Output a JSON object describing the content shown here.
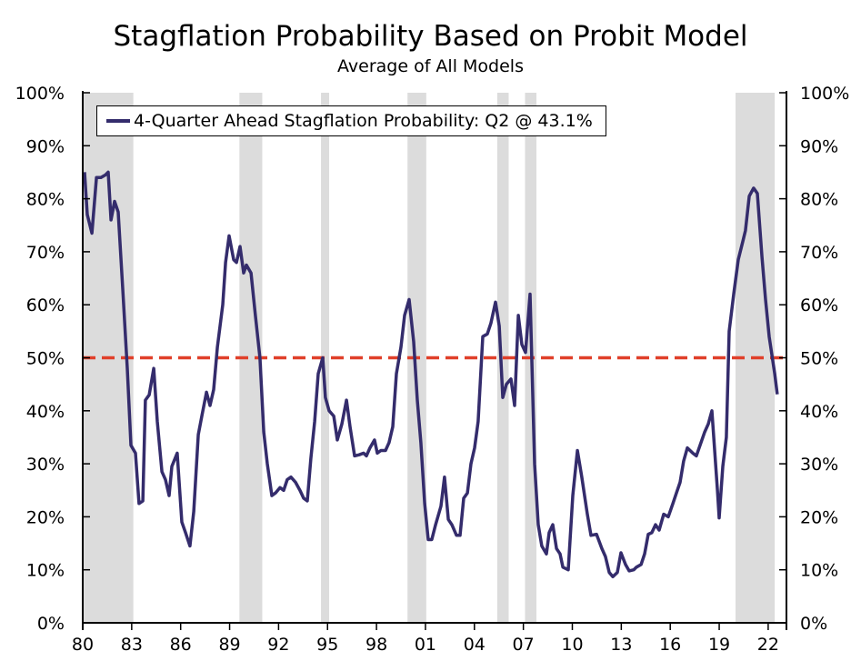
{
  "chart_data": {
    "type": "line",
    "title": "Stagflation Probability Based on Probit Model",
    "subtitle": "Average of All Models",
    "xlim": [
      1980,
      2023.12
    ],
    "ylim": [
      0,
      100
    ],
    "x_tick_values": [
      1980,
      1983,
      1986,
      1989,
      1992,
      1995,
      1998,
      2001,
      2004,
      2007,
      2010,
      2013,
      2016,
      2019,
      2022
    ],
    "x_tick_labels": [
      "80",
      "83",
      "86",
      "89",
      "92",
      "95",
      "98",
      "01",
      "04",
      "07",
      "10",
      "13",
      "16",
      "19",
      "22"
    ],
    "y_tick_values": [
      0,
      10,
      20,
      30,
      40,
      50,
      60,
      70,
      80,
      90,
      100
    ],
    "y_tick_labels": [
      "0%",
      "10%",
      "20%",
      "30%",
      "40%",
      "50%",
      "60%",
      "70%",
      "80%",
      "90%",
      "100%"
    ],
    "grid": false,
    "legend_position": "top-left",
    "threshold": {
      "value": 50,
      "color": "#e0402a",
      "style": "dashed"
    },
    "shaded_periods": [
      [
        1980.0,
        1983.1
      ],
      [
        1989.6,
        1991.0
      ],
      [
        1994.6,
        1995.1
      ],
      [
        1999.9,
        2001.05
      ],
      [
        2005.4,
        2006.1
      ],
      [
        2007.1,
        2007.8
      ],
      [
        2020.0,
        2022.4
      ]
    ],
    "shade_color": "#dcdcdc",
    "series": [
      {
        "name": "4-Quarter Ahead Stagflation Probability: Q2 @ 43.1%",
        "color": "#342c6c",
        "x": [
          1980.11,
          1980.28,
          1980.56,
          1980.84,
          1981.11,
          1981.39,
          1981.56,
          1981.73,
          1981.95,
          1982.17,
          1982.45,
          1982.73,
          1982.95,
          1983.23,
          1983.45,
          1983.68,
          1983.84,
          1984.07,
          1984.35,
          1984.57,
          1984.85,
          1985.07,
          1985.29,
          1985.46,
          1985.79,
          1986.07,
          1986.3,
          1986.57,
          1986.8,
          1987.08,
          1987.3,
          1987.58,
          1987.8,
          1988.02,
          1988.25,
          1988.58,
          1988.75,
          1988.97,
          1989.25,
          1989.42,
          1989.64,
          1989.86,
          1990.03,
          1990.31,
          1990.58,
          1990.86,
          1991.09,
          1991.31,
          1991.59,
          1991.81,
          1992.09,
          1992.31,
          1992.53,
          1992.76,
          1993.04,
          1993.31,
          1993.54,
          1993.76,
          1993.98,
          1994.21,
          1994.43,
          1994.71,
          1994.87,
          1995.1,
          1995.38,
          1995.6,
          1995.88,
          1996.16,
          1996.38,
          1996.66,
          1996.94,
          1997.21,
          1997.38,
          1997.6,
          1997.88,
          1998.05,
          1998.27,
          1998.55,
          1998.77,
          1999.0,
          1999.22,
          1999.5,
          1999.72,
          2000.0,
          2000.28,
          2000.5,
          2000.72,
          2000.95,
          2001.17,
          2001.39,
          2001.62,
          2001.95,
          2002.17,
          2002.4,
          2002.62,
          2002.9,
          2003.12,
          2003.34,
          2003.57,
          2003.79,
          2004.01,
          2004.23,
          2004.51,
          2004.79,
          2005.01,
          2005.29,
          2005.52,
          2005.74,
          2005.96,
          2006.24,
          2006.46,
          2006.69,
          2006.91,
          2007.13,
          2007.41,
          2007.69,
          2007.91,
          2008.13,
          2008.41,
          2008.58,
          2008.8,
          2009.03,
          2009.25,
          2009.42,
          2009.75,
          2010.03,
          2010.31,
          2010.58,
          2010.92,
          2011.14,
          2011.48,
          2011.81,
          2012.03,
          2012.26,
          2012.48,
          2012.76,
          2012.98,
          2013.26,
          2013.48,
          2013.76,
          2013.93,
          2014.21,
          2014.43,
          2014.65,
          2014.87,
          2015.1,
          2015.32,
          2015.6,
          2015.88,
          2016.16,
          2016.38,
          2016.6,
          2016.82,
          2017.05,
          2017.38,
          2017.6,
          2017.83,
          2018.11,
          2018.33,
          2018.55,
          2018.89,
          2019.0,
          2019.22,
          2019.44,
          2019.61,
          2019.89,
          2020.17,
          2020.45,
          2020.61,
          2020.84,
          2021.11,
          2021.34,
          2021.62,
          2021.84,
          2022.06,
          2022.4,
          2022.56
        ],
        "y": [
          85,
          77,
          73.5,
          84,
          84,
          84.5,
          85,
          76,
          79.5,
          77.5,
          63,
          48,
          33.5,
          32,
          22.5,
          23,
          42,
          43,
          48,
          38,
          28.5,
          27,
          24,
          29.5,
          32,
          19,
          17,
          14.5,
          21,
          35.5,
          39,
          43.5,
          41,
          44,
          52,
          60,
          68,
          73,
          68.5,
          68,
          71,
          66,
          67.5,
          66,
          58,
          50,
          36,
          30,
          24,
          24.5,
          25.5,
          25,
          27,
          27.5,
          26.5,
          25,
          23.5,
          23,
          31,
          38,
          47,
          50,
          42.5,
          40,
          39,
          34.5,
          37.5,
          42,
          37,
          31.5,
          31.7,
          32,
          31.5,
          33,
          34.5,
          32,
          32.5,
          32.5,
          34,
          37,
          47,
          52,
          58,
          61,
          53,
          42,
          34,
          22.5,
          15.7,
          15.7,
          18.5,
          22,
          27.5,
          19.5,
          18.5,
          16.5,
          16.5,
          23.5,
          24.5,
          30,
          33,
          38,
          54,
          54.5,
          56.5,
          60.5,
          56,
          42.5,
          45,
          46,
          41,
          58,
          52.5,
          51,
          62,
          30,
          18.5,
          14.5,
          13,
          17,
          18.5,
          14,
          13,
          10.5,
          10,
          24,
          32.5,
          27.5,
          20.5,
          16.5,
          16.7,
          14,
          12.5,
          9.5,
          8.7,
          9.5,
          13.2,
          11,
          9.8,
          10,
          10.5,
          11,
          13,
          16.7,
          17,
          18.5,
          17.5,
          20.5,
          20,
          22.5,
          24.5,
          26.5,
          30.5,
          33,
          32,
          31.5,
          33.5,
          36,
          37.5,
          40,
          25,
          19.8,
          29.5,
          35,
          55,
          62,
          68.5,
          72,
          74,
          80.5,
          82,
          81,
          69,
          61,
          54,
          47,
          43.1
        ]
      }
    ]
  }
}
